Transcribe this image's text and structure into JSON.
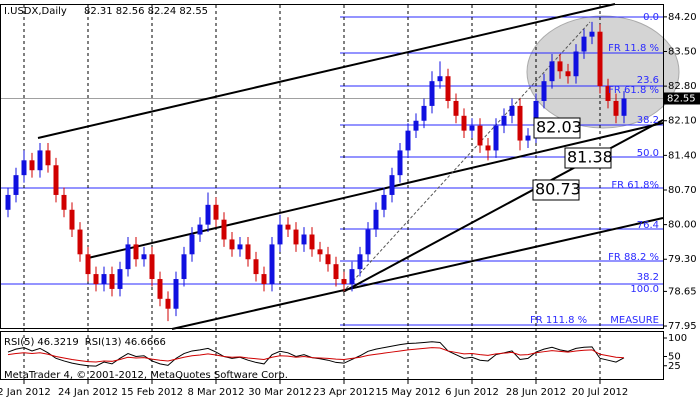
{
  "chart_data": {
    "type": "candlestick",
    "title": "I.USDX,Daily",
    "ohlc_header": "82.31 82.56 82.24 82.55",
    "categories": [
      null,
      null,
      "2 Jan 2012",
      null,
      null,
      null,
      null,
      null,
      null,
      null,
      "24 Jan 2012",
      null,
      null,
      null,
      null,
      null,
      null,
      null,
      "15 Feb 2012",
      null,
      null,
      null,
      null,
      null,
      null,
      null,
      "8 Mar 2012",
      null,
      null,
      null,
      null,
      null,
      null,
      null,
      "30 Mar 2012",
      null,
      null,
      null,
      null,
      null,
      null,
      null,
      "23 Apr 2012",
      null,
      null,
      null,
      null,
      null,
      null,
      null,
      "15 May 2012",
      null,
      null,
      null,
      null,
      null,
      null,
      null,
      "6 Jun 2012",
      null,
      null,
      null,
      null,
      null,
      null,
      null,
      "28 Jun 2012",
      null,
      null,
      null,
      null,
      null,
      null,
      null,
      "20 Jul 2012",
      null,
      null,
      null
    ],
    "open": [
      80.3,
      80.6,
      81.0,
      81.3,
      81.1,
      81.5,
      81.2,
      80.6,
      80.3,
      79.9,
      79.4,
      79.0,
      78.8,
      79.0,
      78.7,
      79.1,
      79.6,
      79.3,
      79.4,
      78.9,
      78.5,
      78.3,
      78.9,
      79.4,
      79.8,
      80.0,
      80.4,
      80.1,
      79.7,
      79.5,
      79.6,
      79.3,
      79.0,
      78.8,
      79.6,
      80.0,
      79.9,
      79.6,
      79.8,
      79.5,
      79.4,
      79.2,
      78.9,
      78.8,
      79.1,
      79.4,
      79.9,
      80.3,
      80.6,
      81.0,
      81.5,
      81.9,
      82.1,
      82.4,
      82.9,
      83.0,
      82.5,
      82.2,
      81.9,
      82.0,
      81.6,
      81.5,
      82.0,
      82.2,
      82.4,
      81.7,
      81.8,
      82.5,
      82.9,
      83.3,
      83.1,
      83.0,
      83.5,
      83.8,
      83.9,
      82.8,
      82.5,
      82.2
    ],
    "high": [
      80.75,
      81.15,
      81.5,
      81.45,
      81.65,
      81.65,
      81.35,
      80.75,
      80.45,
      80.05,
      79.55,
      79.15,
      79.15,
      79.15,
      79.25,
      79.75,
      79.75,
      79.55,
      79.55,
      79.05,
      78.65,
      79.05,
      79.55,
      79.95,
      80.15,
      80.65,
      80.55,
      80.25,
      79.85,
      79.75,
      79.75,
      79.45,
      79.15,
      79.75,
      80.2,
      80.15,
      80.05,
      79.95,
      79.95,
      79.65,
      79.55,
      79.35,
      79.05,
      79.25,
      79.55,
      80.05,
      80.45,
      80.75,
      81.15,
      81.65,
      82.05,
      82.25,
      82.55,
      83.1,
      83.3,
      83.15,
      82.65,
      82.35,
      82.15,
      82.15,
      81.75,
      82.15,
      82.35,
      82.55,
      82.55,
      81.95,
      82.65,
      83.05,
      83.45,
      83.45,
      83.25,
      83.65,
      83.95,
      84.1,
      84.05,
      82.95,
      82.65,
      82.7
    ],
    "low": [
      80.15,
      80.45,
      80.85,
      80.95,
      80.95,
      81.05,
      80.45,
      80.15,
      79.75,
      79.25,
      78.85,
      78.65,
      78.65,
      78.55,
      78.55,
      78.95,
      79.15,
      79.15,
      78.75,
      78.35,
      78.05,
      78.15,
      78.75,
      79.25,
      79.65,
      79.85,
      79.95,
      79.55,
      79.35,
      79.35,
      79.15,
      78.85,
      78.65,
      78.65,
      79.45,
      79.75,
      79.45,
      79.45,
      79.35,
      79.25,
      79.05,
      78.75,
      78.65,
      78.65,
      78.95,
      79.25,
      79.75,
      80.15,
      80.45,
      80.85,
      81.35,
      81.75,
      81.95,
      82.25,
      82.75,
      82.35,
      82.05,
      81.75,
      81.75,
      81.45,
      81.3,
      81.35,
      81.85,
      82.05,
      81.5,
      81.55,
      81.65,
      82.35,
      82.75,
      82.95,
      82.85,
      82.85,
      83.35,
      83.65,
      82.65,
      82.35,
      82.05,
      82.05
    ],
    "close": [
      80.6,
      81.0,
      81.3,
      81.1,
      81.5,
      81.2,
      80.6,
      80.3,
      79.9,
      79.4,
      79.0,
      78.8,
      79.0,
      78.7,
      79.1,
      79.6,
      79.3,
      79.4,
      78.9,
      78.5,
      78.3,
      78.9,
      79.4,
      79.8,
      80.0,
      80.4,
      80.1,
      79.7,
      79.5,
      79.6,
      79.3,
      79.0,
      78.8,
      79.6,
      80.0,
      79.9,
      79.6,
      79.8,
      79.5,
      79.4,
      79.2,
      78.9,
      78.8,
      79.1,
      79.4,
      79.9,
      80.3,
      80.6,
      81.0,
      81.5,
      81.9,
      82.1,
      82.4,
      82.9,
      83.0,
      82.5,
      82.2,
      81.9,
      82.0,
      81.6,
      81.5,
      82.0,
      82.2,
      82.4,
      81.7,
      81.8,
      82.5,
      82.9,
      83.3,
      83.1,
      83.0,
      83.5,
      83.8,
      83.9,
      82.8,
      82.5,
      82.2,
      82.55
    ],
    "up_color": "#1010e0",
    "down_color": "#d00000",
    "ylim": [
      77.91,
      84.44
    ],
    "yticks": [
      {
        "value": 84.2,
        "label": "84.20"
      },
      {
        "value": 83.5,
        "label": "83.50"
      },
      {
        "value": 82.8,
        "label": "82.80"
      },
      {
        "value": 82.1,
        "label": "82.10"
      },
      {
        "value": 81.4,
        "label": "81.40"
      },
      {
        "value": 80.7,
        "label": "80.70"
      },
      {
        "value": 80.0,
        "label": "80.00"
      },
      {
        "value": 79.3,
        "label": "79.30"
      },
      78.65,
      77.95
    ],
    "last_price": 82.55,
    "grid": true,
    "annotations": [
      "0.0",
      "FR 11.8 %",
      "23.6",
      "FR 61.8 %",
      "38.2",
      "50.0",
      "FR 61.8%",
      "76.4",
      "FR 88.2 %",
      "38.2",
      "100.0",
      "FR 111.8 %",
      "MEASURE",
      "82.03",
      "81.38",
      "80.73"
    ],
    "footer": "MetaTrader 4, © 2001-2012, MetaQuotes Software Corp.",
    "rsi": {
      "ylim": [
        0,
        100
      ],
      "yticks": [
        100,
        50,
        25
      ],
      "series": [
        {
          "name": "RSI(5)",
          "color": "#000000",
          "values": [
            62,
            70,
            74,
            65,
            72,
            60,
            45,
            38,
            32,
            28,
            25,
            24,
            35,
            30,
            45,
            58,
            50,
            52,
            38,
            30,
            26,
            45,
            58,
            65,
            68,
            72,
            62,
            50,
            45,
            48,
            40,
            34,
            30,
            55,
            64,
            60,
            50,
            55,
            47,
            44,
            40,
            34,
            32,
            42,
            52,
            64,
            70,
            74,
            78,
            82,
            85,
            86,
            88,
            90,
            88,
            65,
            55,
            45,
            48,
            40,
            38,
            55,
            60,
            65,
            42,
            45,
            62,
            70,
            75,
            68,
            64,
            72,
            75,
            76,
            45,
            40,
            35,
            46.3219
          ]
        },
        {
          "name": "RSI(13)",
          "color": "#d00000",
          "values": [
            55,
            58,
            60,
            58,
            60,
            56,
            50,
            46,
            42,
            39,
            36,
            35,
            38,
            37,
            42,
            48,
            46,
            47,
            43,
            40,
            38,
            43,
            48,
            52,
            54,
            57,
            54,
            50,
            48,
            49,
            46,
            44,
            42,
            48,
            52,
            51,
            48,
            50,
            47,
            46,
            45,
            43,
            42,
            45,
            48,
            53,
            56,
            59,
            62,
            65,
            68,
            70,
            72,
            74,
            73,
            65,
            61,
            57,
            58,
            55,
            53,
            57,
            59,
            61,
            54,
            55,
            60,
            63,
            66,
            64,
            62,
            65,
            67,
            68,
            56,
            52,
            48,
            46.6666
          ]
        }
      ]
    }
  }
}
